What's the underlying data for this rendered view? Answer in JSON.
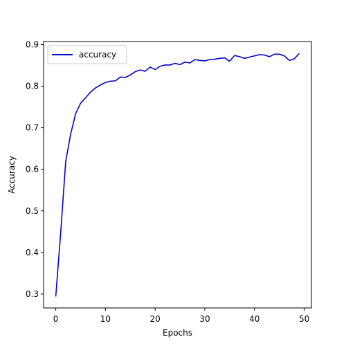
{
  "chart_data": {
    "type": "line",
    "title": "",
    "xlabel": "Epochs",
    "ylabel": "Accuracy",
    "xlim": [
      -2.45,
      51.45
    ],
    "ylim": [
      0.2665,
      0.9075
    ],
    "xticks": [
      0,
      10,
      20,
      30,
      40,
      50
    ],
    "yticks": [
      0.3,
      0.4,
      0.5,
      0.6,
      0.7,
      0.8,
      0.9
    ],
    "grid": false,
    "legend_position": "top-left",
    "series": [
      {
        "name": "accuracy",
        "color": "#0000cc",
        "x": [
          0,
          1,
          2,
          3,
          4,
          5,
          6,
          7,
          8,
          9,
          10,
          11,
          12,
          13,
          14,
          15,
          16,
          17,
          18,
          19,
          20,
          21,
          22,
          23,
          24,
          25,
          26,
          27,
          28,
          29,
          30,
          31,
          32,
          33,
          34,
          35,
          36,
          37,
          38,
          39,
          40,
          41,
          42,
          43,
          44,
          45,
          46,
          47,
          48,
          49
        ],
        "y": [
          0.294,
          0.449,
          0.619,
          0.685,
          0.734,
          0.759,
          0.772,
          0.786,
          0.796,
          0.803,
          0.809,
          0.812,
          0.813,
          0.822,
          0.821,
          0.827,
          0.835,
          0.839,
          0.836,
          0.846,
          0.84,
          0.848,
          0.851,
          0.851,
          0.855,
          0.852,
          0.858,
          0.856,
          0.864,
          0.862,
          0.861,
          0.864,
          0.865,
          0.867,
          0.868,
          0.86,
          0.874,
          0.871,
          0.867,
          0.87,
          0.873,
          0.876,
          0.875,
          0.871,
          0.877,
          0.877,
          0.873,
          0.862,
          0.866,
          0.879
        ]
      }
    ]
  }
}
